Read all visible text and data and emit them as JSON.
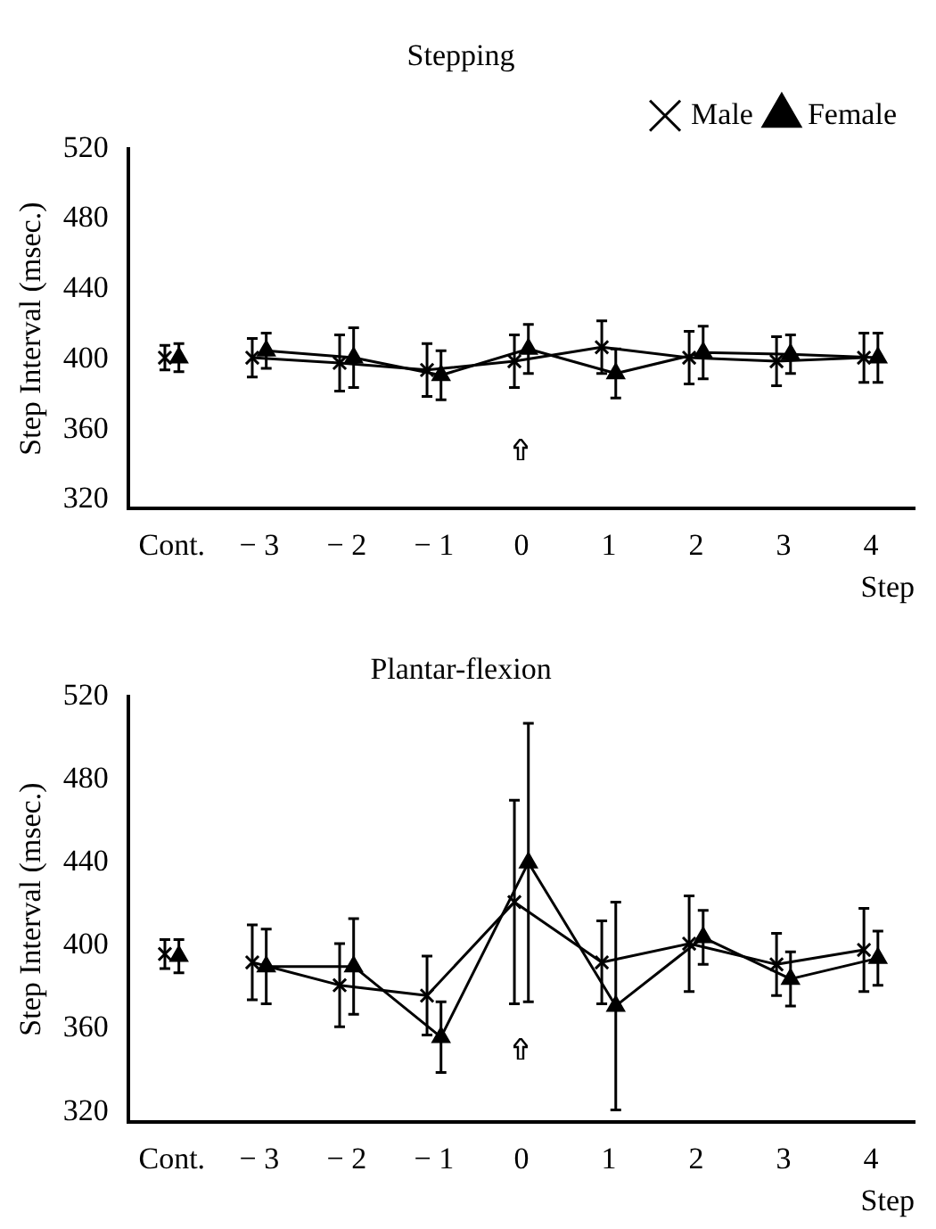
{
  "chart_data": [
    {
      "type": "line",
      "title": "Stepping",
      "xlabel": "Step",
      "ylabel": "Step Interval (msec.)",
      "xlim": [
        -4.5,
        4.5
      ],
      "xticks": [
        {
          "value": -4,
          "label": "Cont."
        },
        {
          "value": -3,
          "label": "− 3"
        },
        {
          "value": -2,
          "label": "− 2"
        },
        {
          "value": -1,
          "label": "− 1"
        },
        0,
        1,
        2,
        3,
        4
      ],
      "ylim": [
        315,
        520
      ],
      "yticks": [
        320,
        360,
        400,
        440,
        480,
        520
      ],
      "grid": false,
      "legend": "top right",
      "series": [
        {
          "name": "Male",
          "color": "#000000",
          "marker": "cross",
          "x": [
            -3.08,
            -2.08,
            -1.08,
            -0.08,
            0.92,
            1.92,
            2.92,
            3.92
          ],
          "values": [
            401,
            398,
            394,
            399,
            407,
            401,
            399,
            401
          ],
          "errors": [
            11,
            16,
            15,
            15,
            15,
            15,
            14,
            14
          ]
        },
        {
          "name": "Female",
          "color": "#000000",
          "marker": "triangle",
          "x": [
            -2.92,
            -1.92,
            -0.92,
            0.08,
            1.08,
            2.08,
            3.08,
            4.08
          ],
          "values": [
            405,
            401,
            391,
            406,
            392,
            404,
            403,
            401
          ],
          "errors": [
            10,
            17,
            14,
            14,
            14,
            15,
            11,
            14
          ]
        },
        {
          "type": "scatter",
          "color": "#000000",
          "marker": "cross",
          "x": [
            -4.08
          ],
          "values": [
            401
          ],
          "errors": [
            7
          ]
        },
        {
          "type": "scatter",
          "color": "#000000",
          "marker": "triangle",
          "x": [
            -3.92
          ],
          "values": [
            401
          ],
          "errors": [
            8
          ]
        }
      ]
    },
    {
      "type": "line",
      "title": "Plantar-flexion",
      "xlabel": "Step",
      "ylabel": "Step Interval (msec.)",
      "xlim": [
        -4.5,
        4.5
      ],
      "xticks": [
        {
          "value": -4,
          "label": "Cont."
        },
        {
          "value": -3,
          "label": "− 3"
        },
        {
          "value": -2,
          "label": "− 2"
        },
        {
          "value": -1,
          "label": "− 1"
        },
        0,
        1,
        2,
        3,
        4
      ],
      "ylim": [
        315,
        520
      ],
      "yticks": [
        320,
        360,
        400,
        440,
        480,
        520
      ],
      "grid": false,
      "legend": false,
      "series": [
        {
          "color": "#000000",
          "marker": "cross",
          "x": [
            -3.08,
            -2.08,
            -1.08,
            -0.08,
            0.92,
            1.92,
            2.92,
            3.92
          ],
          "values": [
            392,
            381,
            376,
            421,
            392,
            401,
            391,
            398
          ],
          "errors": [
            18,
            20,
            19,
            49,
            20,
            23,
            15,
            20
          ]
        },
        {
          "color": "#000000",
          "marker": "triangle",
          "x": [
            -2.92,
            -1.92,
            -0.92,
            0.08,
            1.08,
            2.08,
            3.08,
            4.08
          ],
          "values": [
            390,
            390,
            356,
            440,
            371,
            404,
            384,
            394
          ],
          "errors": [
            18,
            23,
            17,
            67,
            50,
            13,
            13,
            13
          ]
        },
        {
          "type": "scatter",
          "color": "#000000",
          "marker": "cross",
          "x": [
            -4.08
          ],
          "values": [
            396
          ],
          "errors": [
            7
          ]
        },
        {
          "type": "scatter",
          "color": "#000000",
          "marker": "triangle",
          "x": [
            -3.92
          ],
          "values": [
            395
          ],
          "errors": [
            8
          ]
        }
      ]
    }
  ]
}
